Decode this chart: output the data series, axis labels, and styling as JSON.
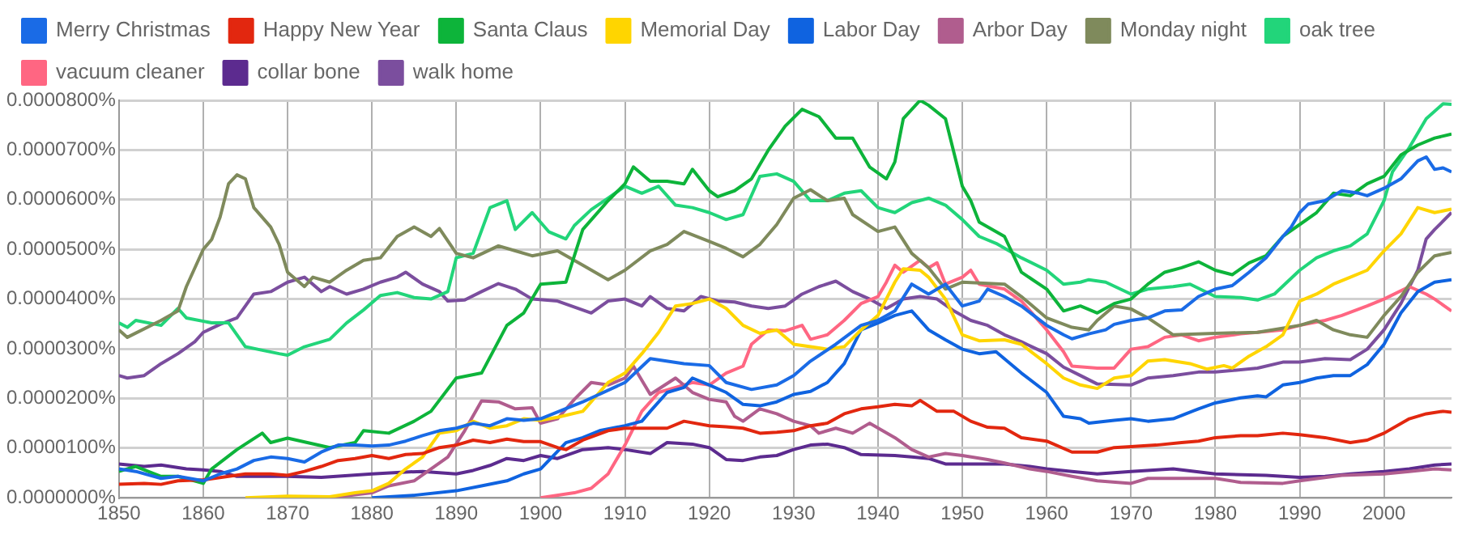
{
  "chart_data": {
    "type": "line",
    "xlim": [
      1850,
      2008
    ],
    "xticks": [
      1850,
      1860,
      1870,
      1880,
      1890,
      1900,
      1910,
      1920,
      1930,
      1940,
      1950,
      1960,
      1970,
      1980,
      1990,
      2000
    ],
    "ylim": [
      0,
      8e-05
    ],
    "yticks": [
      {
        "value": 0,
        "label": "0.0000000%"
      },
      {
        "value": 1e-05,
        "label": "0.0000100%"
      },
      {
        "value": 2e-05,
        "label": "0.0000200%"
      },
      {
        "value": 3e-05,
        "label": "0.0000300%"
      },
      {
        "value": 4e-05,
        "label": "0.0000400%"
      },
      {
        "value": 5e-05,
        "label": "0.0000500%"
      },
      {
        "value": 6e-05,
        "label": "0.0000600%"
      },
      {
        "value": 7e-05,
        "label": "0.0000700%"
      },
      {
        "value": 8e-05,
        "label": "0.0000800%"
      }
    ],
    "grid": true,
    "legend": "top left",
    "marker": "none",
    "line_style": "solid",
    "series": [
      {
        "name": "Merry Christmas",
        "color": "#1a6be6",
        "x": [
          1850,
          1852,
          1855,
          1857,
          1860,
          1862,
          1864,
          1866,
          1868,
          1870,
          1872,
          1874,
          1876,
          1878,
          1880,
          1882,
          1884,
          1886,
          1888,
          1890,
          1892,
          1894,
          1896,
          1898,
          1900,
          1905,
          1910,
          1913,
          1917,
          1920,
          1922,
          1925,
          1928,
          1930,
          1932,
          1935,
          1938,
          1940,
          1942,
          1944,
          1946,
          1948,
          1950,
          1952,
          1953,
          1955,
          1957,
          1960,
          1962,
          1963,
          1965,
          1967,
          1968,
          1970,
          1972,
          1974,
          1976,
          1978,
          1980,
          1982,
          1984,
          1986,
          1988,
          1989,
          1990,
          1991,
          1993,
          1995,
          1997,
          1998,
          2000,
          2002,
          2004,
          2005,
          2006,
          2007,
          2008
        ],
        "values": [
          5.8e-06,
          5.3e-06,
          3.9e-06,
          4.3e-06,
          3.4e-06,
          4.8e-06,
          5.8e-06,
          7.5e-06,
          8.2e-06,
          7.9e-06,
          7.2e-06,
          9.2e-06,
          1.06e-05,
          1.06e-05,
          1.04e-05,
          1.06e-05,
          1.14e-05,
          1.25e-05,
          1.35e-05,
          1.4e-05,
          1.5e-05,
          1.45e-05,
          1.59e-05,
          1.56e-05,
          1.59e-05,
          1.93e-05,
          2.32e-05,
          2.8e-05,
          2.7e-05,
          2.66e-05,
          2.32e-05,
          2.18e-05,
          2.27e-05,
          2.46e-05,
          2.75e-05,
          3.09e-05,
          3.47e-05,
          3.57e-05,
          3.76e-05,
          4.3e-05,
          4.1e-05,
          4.3e-05,
          3.86e-05,
          3.96e-05,
          4.2e-05,
          4.05e-05,
          3.86e-05,
          3.47e-05,
          3.28e-05,
          3.2e-05,
          3.3e-05,
          3.38e-05,
          3.49e-05,
          3.57e-05,
          3.62e-05,
          3.76e-05,
          3.78e-05,
          4.05e-05,
          4.2e-05,
          4.27e-05,
          4.54e-05,
          4.83e-05,
          5.26e-05,
          5.45e-05,
          5.74e-05,
          5.91e-05,
          5.98e-05,
          6.18e-05,
          6.13e-05,
          6.08e-05,
          6.23e-05,
          6.42e-05,
          6.78e-05,
          6.86e-05,
          6.61e-05,
          6.64e-05,
          6.56e-05
        ]
      },
      {
        "name": "Happy New Year",
        "color": "#e2270f",
        "x": [
          1850,
          1853,
          1855,
          1857,
          1860,
          1863,
          1865,
          1868,
          1870,
          1872,
          1874,
          1876,
          1878,
          1880,
          1882,
          1884,
          1886,
          1888,
          1890,
          1892,
          1894,
          1896,
          1898,
          1900,
          1902,
          1903,
          1905,
          1908,
          1910,
          1912,
          1915,
          1917,
          1920,
          1922,
          1924,
          1926,
          1928,
          1930,
          1932,
          1934,
          1936,
          1938,
          1940,
          1942,
          1944,
          1945,
          1947,
          1949,
          1951,
          1953,
          1955,
          1957,
          1960,
          1963,
          1966,
          1968,
          1970,
          1973,
          1976,
          1978,
          1980,
          1983,
          1985,
          1988,
          1990,
          1993,
          1996,
          1998,
          2000,
          2003,
          2005,
          2007,
          2008
        ],
        "values": [
          2.7e-06,
          2.9e-06,
          2.7e-06,
          3.4e-06,
          3.6e-06,
          4.3e-06,
          4.8e-06,
          4.8e-06,
          4.5e-06,
          5.3e-06,
          6.3e-06,
          7.5e-06,
          7.9e-06,
          8.5e-06,
          7.9e-06,
          8.7e-06,
          8.9e-06,
          1.01e-05,
          1.06e-05,
          1.16e-05,
          1.11e-05,
          1.18e-05,
          1.13e-05,
          1.13e-05,
          1.01e-05,
          9.7e-06,
          1.16e-05,
          1.35e-05,
          1.4e-05,
          1.4e-05,
          1.4e-05,
          1.54e-05,
          1.45e-05,
          1.43e-05,
          1.4e-05,
          1.3e-05,
          1.32e-05,
          1.35e-05,
          1.45e-05,
          1.5e-05,
          1.69e-05,
          1.79e-05,
          1.83e-05,
          1.88e-05,
          1.85e-05,
          1.96e-05,
          1.74e-05,
          1.74e-05,
          1.54e-05,
          1.42e-05,
          1.4e-05,
          1.21e-05,
          1.14e-05,
          9.2e-06,
          9.2e-06,
          1.01e-05,
          1.03e-05,
          1.06e-05,
          1.11e-05,
          1.14e-05,
          1.21e-05,
          1.25e-05,
          1.25e-05,
          1.3e-05,
          1.27e-05,
          1.21e-05,
          1.11e-05,
          1.16e-05,
          1.3e-05,
          1.59e-05,
          1.69e-05,
          1.74e-05,
          1.72e-05
        ]
      },
      {
        "name": "Santa Claus",
        "color": "#0db43a",
        "x": [
          1850,
          1852,
          1855,
          1857,
          1860,
          1861,
          1864,
          1867,
          1868,
          1870,
          1875,
          1878,
          1879,
          1882,
          1885,
          1887,
          1890,
          1893,
          1896,
          1898,
          1900,
          1903,
          1905,
          1908,
          1910,
          1911,
          1913,
          1915,
          1917,
          1918,
          1920,
          1921,
          1923,
          1925,
          1927,
          1929,
          1931,
          1933,
          1935,
          1937,
          1939,
          1941,
          1942,
          1943,
          1945,
          1946,
          1948,
          1949,
          1950,
          1951,
          1952,
          1955,
          1957,
          1960,
          1962,
          1964,
          1966,
          1968,
          1970,
          1972,
          1974,
          1976,
          1978,
          1980,
          1982,
          1984,
          1986,
          1988,
          1990,
          1992,
          1994,
          1996,
          1998,
          2000,
          2002,
          2004,
          2006,
          2008
        ],
        "values": [
          5.3e-06,
          6.3e-06,
          4.3e-06,
          4.3e-06,
          2.9e-06,
          5.8e-06,
          9.7e-06,
          1.3e-05,
          1.11e-05,
          1.2e-05,
          1.01e-05,
          1.11e-05,
          1.35e-05,
          1.3e-05,
          1.54e-05,
          1.74e-05,
          2.41e-05,
          2.51e-05,
          3.47e-05,
          3.72e-05,
          4.3e-05,
          4.34e-05,
          5.4e-05,
          5.98e-05,
          6.32e-05,
          6.66e-05,
          6.37e-05,
          6.37e-05,
          6.32e-05,
          6.61e-05,
          6.18e-05,
          6.06e-05,
          6.18e-05,
          6.42e-05,
          7e-05,
          7.48e-05,
          7.82e-05,
          7.67e-05,
          7.24e-05,
          7.24e-05,
          6.66e-05,
          6.42e-05,
          6.76e-05,
          7.63e-05,
          8e-05,
          7.9e-05,
          7.63e-05,
          6.95e-05,
          6.27e-05,
          5.98e-05,
          5.55e-05,
          5.26e-05,
          4.54e-05,
          4.2e-05,
          3.76e-05,
          3.86e-05,
          3.72e-05,
          3.91e-05,
          4e-05,
          4.3e-05,
          4.54e-05,
          4.63e-05,
          4.75e-05,
          4.58e-05,
          4.49e-05,
          4.73e-05,
          4.87e-05,
          5.26e-05,
          5.5e-05,
          5.74e-05,
          6.13e-05,
          6.08e-05,
          6.32e-05,
          6.47e-05,
          6.9e-05,
          7.1e-05,
          7.24e-05,
          7.32e-05
        ]
      },
      {
        "name": "Memorial Day",
        "color": "#ffd500",
        "x": [
          1865,
          1870,
          1875,
          1878,
          1880,
          1882,
          1884,
          1886,
          1888,
          1890,
          1892,
          1894,
          1896,
          1898,
          1900,
          1902,
          1905,
          1908,
          1910,
          1912,
          1914,
          1916,
          1918,
          1920,
          1922,
          1924,
          1926,
          1928,
          1930,
          1932,
          1934,
          1936,
          1938,
          1940,
          1942,
          1943,
          1945,
          1946,
          1948,
          1950,
          1952,
          1955,
          1957,
          1960,
          1962,
          1964,
          1966,
          1968,
          1970,
          1972,
          1974,
          1977,
          1979,
          1981,
          1982,
          1984,
          1986,
          1988,
          1990,
          1992,
          1994,
          1996,
          1998,
          2000,
          2002,
          2004,
          2006,
          2008
        ],
        "values": [
          0,
          3e-07,
          2e-07,
          1e-06,
          1.4e-06,
          2.9e-06,
          5.8e-06,
          8.2e-06,
          1.3e-05,
          1.35e-05,
          1.54e-05,
          1.4e-05,
          1.45e-05,
          1.59e-05,
          1.56e-05,
          1.62e-05,
          1.74e-05,
          2.32e-05,
          2.51e-05,
          2.9e-05,
          3.33e-05,
          3.86e-05,
          3.91e-05,
          4e-05,
          3.81e-05,
          3.47e-05,
          3.31e-05,
          3.38e-05,
          3.09e-05,
          3.04e-05,
          2.99e-05,
          3.04e-05,
          3.38e-05,
          3.67e-05,
          4.34e-05,
          4.61e-05,
          4.58e-05,
          4.44e-05,
          4e-05,
          3.28e-05,
          3.16e-05,
          3.18e-05,
          3.09e-05,
          2.7e-05,
          2.41e-05,
          2.27e-05,
          2.2e-05,
          2.41e-05,
          2.46e-05,
          2.75e-05,
          2.78e-05,
          2.7e-05,
          2.59e-05,
          2.66e-05,
          2.61e-05,
          2.85e-05,
          3.04e-05,
          3.28e-05,
          3.96e-05,
          4.1e-05,
          4.3e-05,
          4.44e-05,
          4.58e-05,
          4.97e-05,
          5.31e-05,
          5.84e-05,
          5.74e-05,
          5.81e-05
        ]
      },
      {
        "name": "Labor Day",
        "color": "#0f63e0",
        "x": [
          1880,
          1885,
          1890,
          1893,
          1896,
          1898,
          1900,
          1903,
          1905,
          1907,
          1910,
          1912,
          1913,
          1915,
          1917,
          1918,
          1920,
          1922,
          1924,
          1926,
          1928,
          1930,
          1932,
          1934,
          1936,
          1938,
          1940,
          1942,
          1944,
          1946,
          1948,
          1950,
          1952,
          1954,
          1957,
          1960,
          1962,
          1964,
          1965,
          1968,
          1970,
          1972,
          1975,
          1978,
          1980,
          1983,
          1985,
          1986,
          1988,
          1990,
          1992,
          1994,
          1996,
          1998,
          2000,
          2002,
          2004,
          2006,
          2008
        ],
        "values": [
          0,
          5e-07,
          1.4e-06,
          2.4e-06,
          3.4e-06,
          4.8e-06,
          5.8e-06,
          1.11e-05,
          1.21e-05,
          1.35e-05,
          1.45e-05,
          1.54e-05,
          1.74e-05,
          2.12e-05,
          2.22e-05,
          2.41e-05,
          2.27e-05,
          2.12e-05,
          1.88e-05,
          1.85e-05,
          1.93e-05,
          2.08e-05,
          2.14e-05,
          2.32e-05,
          2.7e-05,
          3.38e-05,
          3.52e-05,
          3.67e-05,
          3.76e-05,
          3.38e-05,
          3.18e-05,
          2.99e-05,
          2.9e-05,
          2.94e-05,
          2.51e-05,
          2.12e-05,
          1.64e-05,
          1.59e-05,
          1.5e-05,
          1.56e-05,
          1.59e-05,
          1.54e-05,
          1.59e-05,
          1.79e-05,
          1.91e-05,
          2.01e-05,
          2.05e-05,
          2.03e-05,
          2.27e-05,
          2.32e-05,
          2.41e-05,
          2.46e-05,
          2.46e-05,
          2.68e-05,
          3.09e-05,
          3.72e-05,
          4.15e-05,
          4.34e-05,
          4.39e-05
        ]
      },
      {
        "name": "Arbor Day",
        "color": "#b05d8e",
        "x": [
          1875,
          1880,
          1882,
          1885,
          1887,
          1889,
          1891,
          1893,
          1895,
          1897,
          1899,
          1900,
          1902,
          1904,
          1906,
          1908,
          1910,
          1911,
          1913,
          1916,
          1918,
          1920,
          1922,
          1923,
          1924,
          1926,
          1928,
          1930,
          1932,
          1933,
          1935,
          1937,
          1939,
          1942,
          1944,
          1946,
          1948,
          1950,
          1953,
          1955,
          1958,
          1960,
          1963,
          1966,
          1970,
          1972,
          1975,
          1980,
          1983,
          1988,
          1990,
          1995,
          2000,
          2003,
          2006,
          2008
        ],
        "values": [
          0,
          1e-06,
          2.4e-06,
          3.4e-06,
          5.8e-06,
          8.2e-06,
          1.35e-05,
          1.95e-05,
          1.93e-05,
          1.79e-05,
          1.81e-05,
          1.5e-05,
          1.59e-05,
          1.98e-05,
          2.32e-05,
          2.27e-05,
          2.41e-05,
          2.65e-05,
          2.08e-05,
          2.41e-05,
          2.12e-05,
          1.98e-05,
          1.93e-05,
          1.64e-05,
          1.54e-05,
          1.79e-05,
          1.69e-05,
          1.54e-05,
          1.45e-05,
          1.3e-05,
          1.4e-05,
          1.3e-05,
          1.5e-05,
          1.21e-05,
          9.7e-06,
          8.2e-06,
          8.9e-06,
          8.5e-06,
          7.7e-06,
          7e-06,
          5.8e-06,
          5.3e-06,
          4.3e-06,
          3.4e-06,
          2.9e-06,
          3.9e-06,
          3.9e-06,
          3.9e-06,
          3.1e-06,
          2.9e-06,
          3.4e-06,
          4.5e-06,
          4.8e-06,
          5.3e-06,
          5.8e-06,
          5.6e-06
        ]
      },
      {
        "name": "Monday night",
        "color": "#7f8a5c",
        "x": [
          1850,
          1851,
          1855,
          1857,
          1858,
          1860,
          1861,
          1862,
          1863,
          1864,
          1865,
          1866,
          1868,
          1869,
          1870,
          1872,
          1873,
          1875,
          1877,
          1879,
          1881,
          1883,
          1885,
          1887,
          1888,
          1890,
          1892,
          1895,
          1897,
          1899,
          1902,
          1905,
          1908,
          1910,
          1913,
          1915,
          1917,
          1920,
          1922,
          1924,
          1926,
          1928,
          1930,
          1932,
          1934,
          1936,
          1937,
          1940,
          1942,
          1944,
          1946,
          1948,
          1950,
          1955,
          1957,
          1960,
          1963,
          1965,
          1966,
          1968,
          1970,
          1972,
          1975,
          1980,
          1985,
          1990,
          1992,
          1994,
          1996,
          1998,
          2000,
          2002,
          2004,
          2006,
          2008
        ],
        "values": [
          3.38e-05,
          3.23e-05,
          3.57e-05,
          3.76e-05,
          4.25e-05,
          5e-05,
          5.2e-05,
          5.65e-05,
          6.32e-05,
          6.5e-05,
          6.42e-05,
          5.84e-05,
          5.45e-05,
          5.1e-05,
          4.54e-05,
          4.25e-05,
          4.44e-05,
          4.34e-05,
          4.58e-05,
          4.78e-05,
          4.83e-05,
          5.26e-05,
          5.45e-05,
          5.26e-05,
          5.42e-05,
          4.92e-05,
          4.83e-05,
          5.07e-05,
          4.97e-05,
          4.87e-05,
          4.97e-05,
          4.68e-05,
          4.39e-05,
          4.58e-05,
          4.97e-05,
          5.1e-05,
          5.36e-05,
          5.16e-05,
          5.02e-05,
          4.85e-05,
          5.1e-05,
          5.5e-05,
          6.03e-05,
          6.2e-05,
          5.98e-05,
          6.03e-05,
          5.7e-05,
          5.36e-05,
          5.45e-05,
          4.92e-05,
          4.63e-05,
          4.2e-05,
          4.34e-05,
          4.3e-05,
          4.05e-05,
          3.62e-05,
          3.43e-05,
          3.38e-05,
          3.57e-05,
          3.86e-05,
          3.8e-05,
          3.62e-05,
          3.28e-05,
          3.31e-05,
          3.33e-05,
          3.47e-05,
          3.57e-05,
          3.38e-05,
          3.28e-05,
          3.23e-05,
          3.67e-05,
          4.05e-05,
          4.54e-05,
          4.87e-05,
          4.94e-05
        ]
      },
      {
        "name": "oak tree",
        "color": "#22d57a",
        "x": [
          1850,
          1851,
          1852,
          1855,
          1857,
          1858,
          1861,
          1863,
          1865,
          1867,
          1869,
          1870,
          1872,
          1875,
          1877,
          1879,
          1881,
          1883,
          1885,
          1887,
          1889,
          1890,
          1892,
          1894,
          1896,
          1897,
          1899,
          1901,
          1903,
          1904,
          1906,
          1908,
          1910,
          1912,
          1914,
          1916,
          1918,
          1920,
          1922,
          1924,
          1926,
          1928,
          1930,
          1932,
          1934,
          1936,
          1938,
          1940,
          1942,
          1944,
          1946,
          1948,
          1950,
          1952,
          1954,
          1957,
          1960,
          1962,
          1964,
          1965,
          1967,
          1970,
          1972,
          1975,
          1977,
          1980,
          1983,
          1985,
          1987,
          1990,
          1992,
          1994,
          1996,
          1998,
          2000,
          2001,
          2003,
          2005,
          2007,
          2008
        ],
        "values": [
          3.52e-05,
          3.43e-05,
          3.57e-05,
          3.47e-05,
          3.81e-05,
          3.62e-05,
          3.52e-05,
          3.52e-05,
          3.04e-05,
          2.97e-05,
          2.9e-05,
          2.87e-05,
          3.04e-05,
          3.19e-05,
          3.52e-05,
          3.78e-05,
          4.07e-05,
          4.13e-05,
          4.03e-05,
          4e-05,
          4.15e-05,
          4.83e-05,
          4.92e-05,
          5.84e-05,
          5.98e-05,
          5.4e-05,
          5.74e-05,
          5.35e-05,
          5.21e-05,
          5.48e-05,
          5.8e-05,
          6.03e-05,
          6.27e-05,
          6.13e-05,
          6.27e-05,
          5.89e-05,
          5.84e-05,
          5.74e-05,
          5.6e-05,
          5.7e-05,
          6.47e-05,
          6.52e-05,
          6.37e-05,
          5.98e-05,
          5.98e-05,
          6.13e-05,
          6.18e-05,
          5.84e-05,
          5.74e-05,
          5.94e-05,
          6.03e-05,
          5.89e-05,
          5.6e-05,
          5.26e-05,
          5.12e-05,
          4.83e-05,
          4.58e-05,
          4.3e-05,
          4.34e-05,
          4.39e-05,
          4.34e-05,
          4.1e-05,
          4.2e-05,
          4.25e-05,
          4.3e-05,
          4.05e-05,
          4.03e-05,
          3.98e-05,
          4.1e-05,
          4.58e-05,
          4.83e-05,
          4.97e-05,
          5.07e-05,
          5.31e-05,
          5.98e-05,
          6.56e-05,
          7.05e-05,
          7.63e-05,
          7.93e-05,
          7.92e-05
        ]
      },
      {
        "name": "vacuum cleaner",
        "color": "#ff6682",
        "x": [
          1900,
          1904,
          1906,
          1908,
          1910,
          1912,
          1914,
          1916,
          1918,
          1920,
          1922,
          1924,
          1925,
          1927,
          1929,
          1931,
          1932,
          1934,
          1936,
          1938,
          1940,
          1941,
          1942,
          1943,
          1945,
          1946,
          1947,
          1948,
          1950,
          1951,
          1952,
          1955,
          1957,
          1960,
          1962,
          1963,
          1966,
          1968,
          1970,
          1972,
          1974,
          1976,
          1978,
          1980,
          1983,
          1985,
          1988,
          1990,
          1993,
          1995,
          1998,
          2000,
          2003,
          2005,
          2006,
          2008
        ],
        "values": [
          0,
          1e-06,
          1.9e-06,
          4.8e-06,
          1.06e-05,
          1.74e-05,
          2.12e-05,
          2.22e-05,
          2.32e-05,
          2.27e-05,
          2.51e-05,
          2.65e-05,
          3.09e-05,
          3.38e-05,
          3.36e-05,
          3.47e-05,
          3.19e-05,
          3.28e-05,
          3.57e-05,
          3.91e-05,
          4.05e-05,
          4.34e-05,
          4.68e-05,
          4.54e-05,
          4.78e-05,
          4.63e-05,
          4.73e-05,
          4.3e-05,
          4.44e-05,
          4.58e-05,
          4.3e-05,
          4.2e-05,
          3.96e-05,
          3.38e-05,
          2.94e-05,
          2.65e-05,
          2.61e-05,
          2.61e-05,
          2.99e-05,
          3.04e-05,
          3.23e-05,
          3.28e-05,
          3.16e-05,
          3.23e-05,
          3.3e-05,
          3.33e-05,
          3.38e-05,
          3.47e-05,
          3.57e-05,
          3.67e-05,
          3.86e-05,
          4e-05,
          4.25e-05,
          4.1e-05,
          4e-05,
          3.76e-05
        ]
      },
      {
        "name": "collar bone",
        "color": "#5c2b8f",
        "x": [
          1850,
          1853,
          1855,
          1858,
          1860,
          1862,
          1864,
          1870,
          1874,
          1880,
          1883,
          1886,
          1890,
          1892,
          1894,
          1896,
          1898,
          1900,
          1902,
          1905,
          1908,
          1910,
          1913,
          1915,
          1918,
          1920,
          1922,
          1924,
          1926,
          1928,
          1930,
          1932,
          1934,
          1936,
          1938,
          1942,
          1944,
          1946,
          1948,
          1950,
          1955,
          1958,
          1960,
          1963,
          1966,
          1970,
          1975,
          1980,
          1986,
          1990,
          1993,
          1996,
          2000,
          2003,
          2006,
          2008
        ],
        "values": [
          6.8e-06,
          6.3e-06,
          6.6e-06,
          5.8e-06,
          5.6e-06,
          5.3e-06,
          4.3e-06,
          4.3e-06,
          4.1e-06,
          4.8e-06,
          5.1e-06,
          5.3e-06,
          4.8e-06,
          5.5e-06,
          6.5e-06,
          7.9e-06,
          7.5e-06,
          8.5e-06,
          7.9e-06,
          9.7e-06,
          1.01e-05,
          9.7e-06,
          8.9e-06,
          1.11e-05,
          1.08e-05,
          1.01e-05,
          7.7e-06,
          7.5e-06,
          8.2e-06,
          8.5e-06,
          9.7e-06,
          1.06e-05,
          1.08e-05,
          1.01e-05,
          8.7e-06,
          8.5e-06,
          8.2e-06,
          7.9e-06,
          6.8e-06,
          6.8e-06,
          6.8e-06,
          6.3e-06,
          5.8e-06,
          5.3e-06,
          4.8e-06,
          5.3e-06,
          5.8e-06,
          4.8e-06,
          4.5e-06,
          4.1e-06,
          4.3e-06,
          4.8e-06,
          5.3e-06,
          5.8e-06,
          6.6e-06,
          6.8e-06
        ]
      },
      {
        "name": "walk home",
        "color": "#7b4e9e",
        "x": [
          1850,
          1851,
          1853,
          1855,
          1857,
          1859,
          1860,
          1862,
          1864,
          1866,
          1868,
          1870,
          1872,
          1874,
          1875,
          1877,
          1879,
          1881,
          1883,
          1884,
          1886,
          1888,
          1889,
          1891,
          1893,
          1895,
          1897,
          1899,
          1902,
          1906,
          1908,
          1910,
          1912,
          1913,
          1915,
          1917,
          1919,
          1921,
          1923,
          1925,
          1927,
          1929,
          1931,
          1933,
          1935,
          1937,
          1939,
          1941,
          1943,
          1945,
          1947,
          1949,
          1951,
          1953,
          1955,
          1957,
          1960,
          1962,
          1964,
          1966,
          1970,
          1972,
          1975,
          1978,
          1980,
          1985,
          1988,
          1990,
          1993,
          1996,
          1998,
          2000,
          2002,
          2004,
          2005,
          2006,
          2008
        ],
        "values": [
          2.46e-05,
          2.41e-05,
          2.46e-05,
          2.7e-05,
          2.9e-05,
          3.14e-05,
          3.33e-05,
          3.49e-05,
          3.62e-05,
          4.1e-05,
          4.15e-05,
          4.34e-05,
          4.44e-05,
          4.15e-05,
          4.25e-05,
          4.1e-05,
          4.2e-05,
          4.34e-05,
          4.44e-05,
          4.54e-05,
          4.3e-05,
          4.15e-05,
          3.96e-05,
          3.98e-05,
          4.15e-05,
          4.31e-05,
          4.2e-05,
          4e-05,
          3.96e-05,
          3.72e-05,
          3.96e-05,
          4e-05,
          3.86e-05,
          4.05e-05,
          3.81e-05,
          3.76e-05,
          4.05e-05,
          3.96e-05,
          3.94e-05,
          3.86e-05,
          3.81e-05,
          3.86e-05,
          4.1e-05,
          4.25e-05,
          4.36e-05,
          4.15e-05,
          4e-05,
          3.81e-05,
          4e-05,
          4.05e-05,
          4e-05,
          3.76e-05,
          3.57e-05,
          3.47e-05,
          3.28e-05,
          3.14e-05,
          2.9e-05,
          2.63e-05,
          2.46e-05,
          2.29e-05,
          2.27e-05,
          2.41e-05,
          2.46e-05,
          2.53e-05,
          2.53e-05,
          2.61e-05,
          2.73e-05,
          2.73e-05,
          2.8e-05,
          2.78e-05,
          2.99e-05,
          3.38e-05,
          3.91e-05,
          4.58e-05,
          5.21e-05,
          5.4e-05,
          5.74e-05
        ]
      }
    ]
  }
}
